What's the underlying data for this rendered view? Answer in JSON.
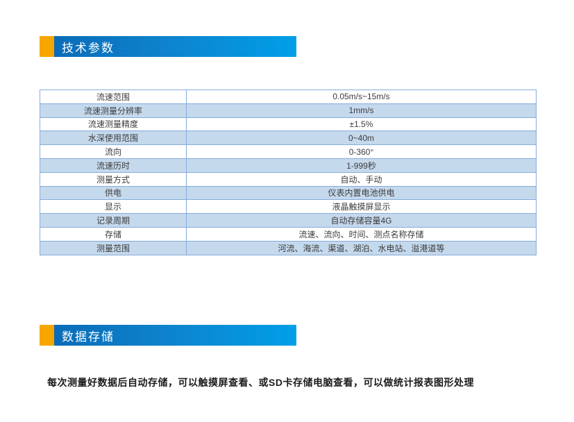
{
  "colors": {
    "accent_orange": "#F7A600",
    "header_gradient_start": "#0A6CB8",
    "header_gradient_end": "#009FE8",
    "table_border": "#85ABDB",
    "row_shaded_background": "#C5D9ED",
    "table_text": "#3C3C3C",
    "paragraph_text": "#1C1C1C"
  },
  "sections": {
    "technical_parameters": {
      "title": "技术参数"
    },
    "data_storage": {
      "title": "数据存储"
    }
  },
  "spec_table": {
    "rows": [
      {
        "label": "流速范围",
        "value": "0.05m/s~15m/s"
      },
      {
        "label": "流速测量分辨率",
        "value": "1mm/s"
      },
      {
        "label": "流速测量精度",
        "value": "±1.5%"
      },
      {
        "label": "水深使用范围",
        "value": "0~40m"
      },
      {
        "label": "流向",
        "value": "0-360°"
      },
      {
        "label": "流速历时",
        "value": "1-999秒"
      },
      {
        "label": "测量方式",
        "value": "自动、手动"
      },
      {
        "label": "供电",
        "value": "仪表内置电池供电"
      },
      {
        "label": "显示",
        "value": "液晶触摸屏显示"
      },
      {
        "label": "记录周期",
        "value": "自动存储容量4G"
      },
      {
        "label": "存储",
        "value": "流速、流向、时间、测点名称存储"
      },
      {
        "label": "测量范围",
        "value": "河流、海流、渠道、湖泊、水电站、溢港道等"
      }
    ]
  },
  "data_storage": {
    "description": "每次测量好数据后自动存储，可以触摸屏查看、或SD卡存储电脑查看，可以做统计报表图形处理"
  }
}
